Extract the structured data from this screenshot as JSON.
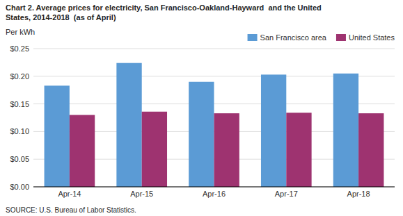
{
  "chart_data": {
    "type": "bar",
    "title": [
      "Chart 2. Average prices for electricity, San Francisco-Oakland-Hayward  and the United",
      "States, 2014-2018  (as of April)"
    ],
    "y_label": "Per kWh",
    "annotations": [
      "SOURCE: U.S. Bureau of Labor Statistics."
    ],
    "categories": [
      "Apr-14",
      "Apr-15",
      "Apr-16",
      "Apr-17",
      "Apr-18"
    ],
    "series": [
      {
        "name": "San Francisco area",
        "color": "#5B9BD5",
        "values": [
          0.183,
          0.224,
          0.19,
          0.203,
          0.205
        ]
      },
      {
        "name": "United States",
        "color": "#9E3370",
        "values": [
          0.13,
          0.136,
          0.133,
          0.134,
          0.133
        ]
      }
    ],
    "ylim": [
      0,
      0.25
    ],
    "yticks": [
      {
        "value": 0.0,
        "label": "$0.00"
      },
      {
        "value": 0.05,
        "label": "$0.05"
      },
      {
        "value": 0.1,
        "label": "$0.10"
      },
      {
        "value": 0.15,
        "label": "$0.15"
      },
      {
        "value": 0.2,
        "label": "$0.20"
      },
      {
        "value": 0.25,
        "label": "$0.25"
      }
    ],
    "grid": true,
    "legend": "upper right"
  }
}
